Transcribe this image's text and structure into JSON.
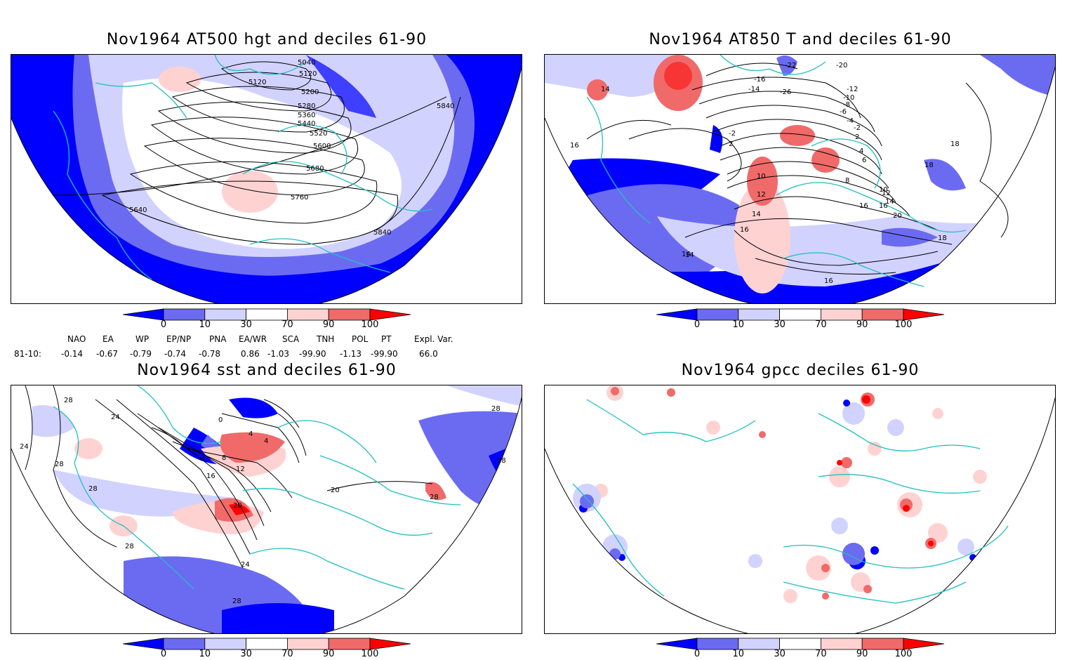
{
  "panels": [
    {
      "id": "p1",
      "title": "Nov1964 AT500 hgt and deciles 61-90",
      "contour_labels": [
        "5040",
        "5120",
        "5120",
        "5200",
        "5280",
        "5360",
        "5440",
        "5520",
        "5600",
        "5680",
        "5760",
        "5840",
        "5640",
        "5840"
      ]
    },
    {
      "id": "p2",
      "title": "Nov1964 AT850 T and deciles 61-90",
      "contour_labels": [
        "-22",
        "-20",
        "-16",
        "-14",
        "-26",
        "-12",
        "-10",
        "-8",
        "-6",
        "-4",
        "-2",
        "2",
        "-2",
        "2",
        "4",
        "6",
        "8",
        "10",
        "12",
        "14",
        "16",
        "14",
        "16",
        "18",
        "16",
        "18",
        "20",
        "18",
        "16",
        "14",
        "10",
        "12",
        "14",
        "16",
        "14"
      ]
    },
    {
      "id": "p3",
      "title": "Nov1964 sst and deciles 61-90",
      "contour_labels": [
        "28",
        "24",
        "28",
        "28",
        "24",
        "0",
        "4",
        "4",
        "4",
        "8",
        "12",
        "16",
        "20",
        "24",
        "28",
        "28",
        "28",
        "20",
        "28",
        "28"
      ]
    },
    {
      "id": "p4",
      "title": "Nov1964 gpcc deciles 61-90",
      "contour_labels": []
    }
  ],
  "colorbar": {
    "tick_labels": [
      "0",
      "10",
      "30",
      "70",
      "90",
      "100"
    ],
    "colors": [
      "#0000ff",
      "#6b6bf2",
      "#d2d2ff",
      "#ffffff",
      "#ffd2d2",
      "#f06a6a",
      "#ff0000"
    ]
  },
  "indices": {
    "headers": [
      "NAO",
      "EA",
      "WP",
      "EP/NP",
      "PNA",
      "EA/WR",
      "SCA",
      "TNH",
      "POL",
      "PT",
      "Expl. Var."
    ],
    "row_label": "81-10:",
    "values": [
      "-0.14",
      "-0.67",
      "-0.79",
      "-0.74",
      "-0.78",
      "0.86",
      "-1.03",
      "-99.90",
      "-1.13",
      "-99.90",
      "66.0"
    ]
  }
}
